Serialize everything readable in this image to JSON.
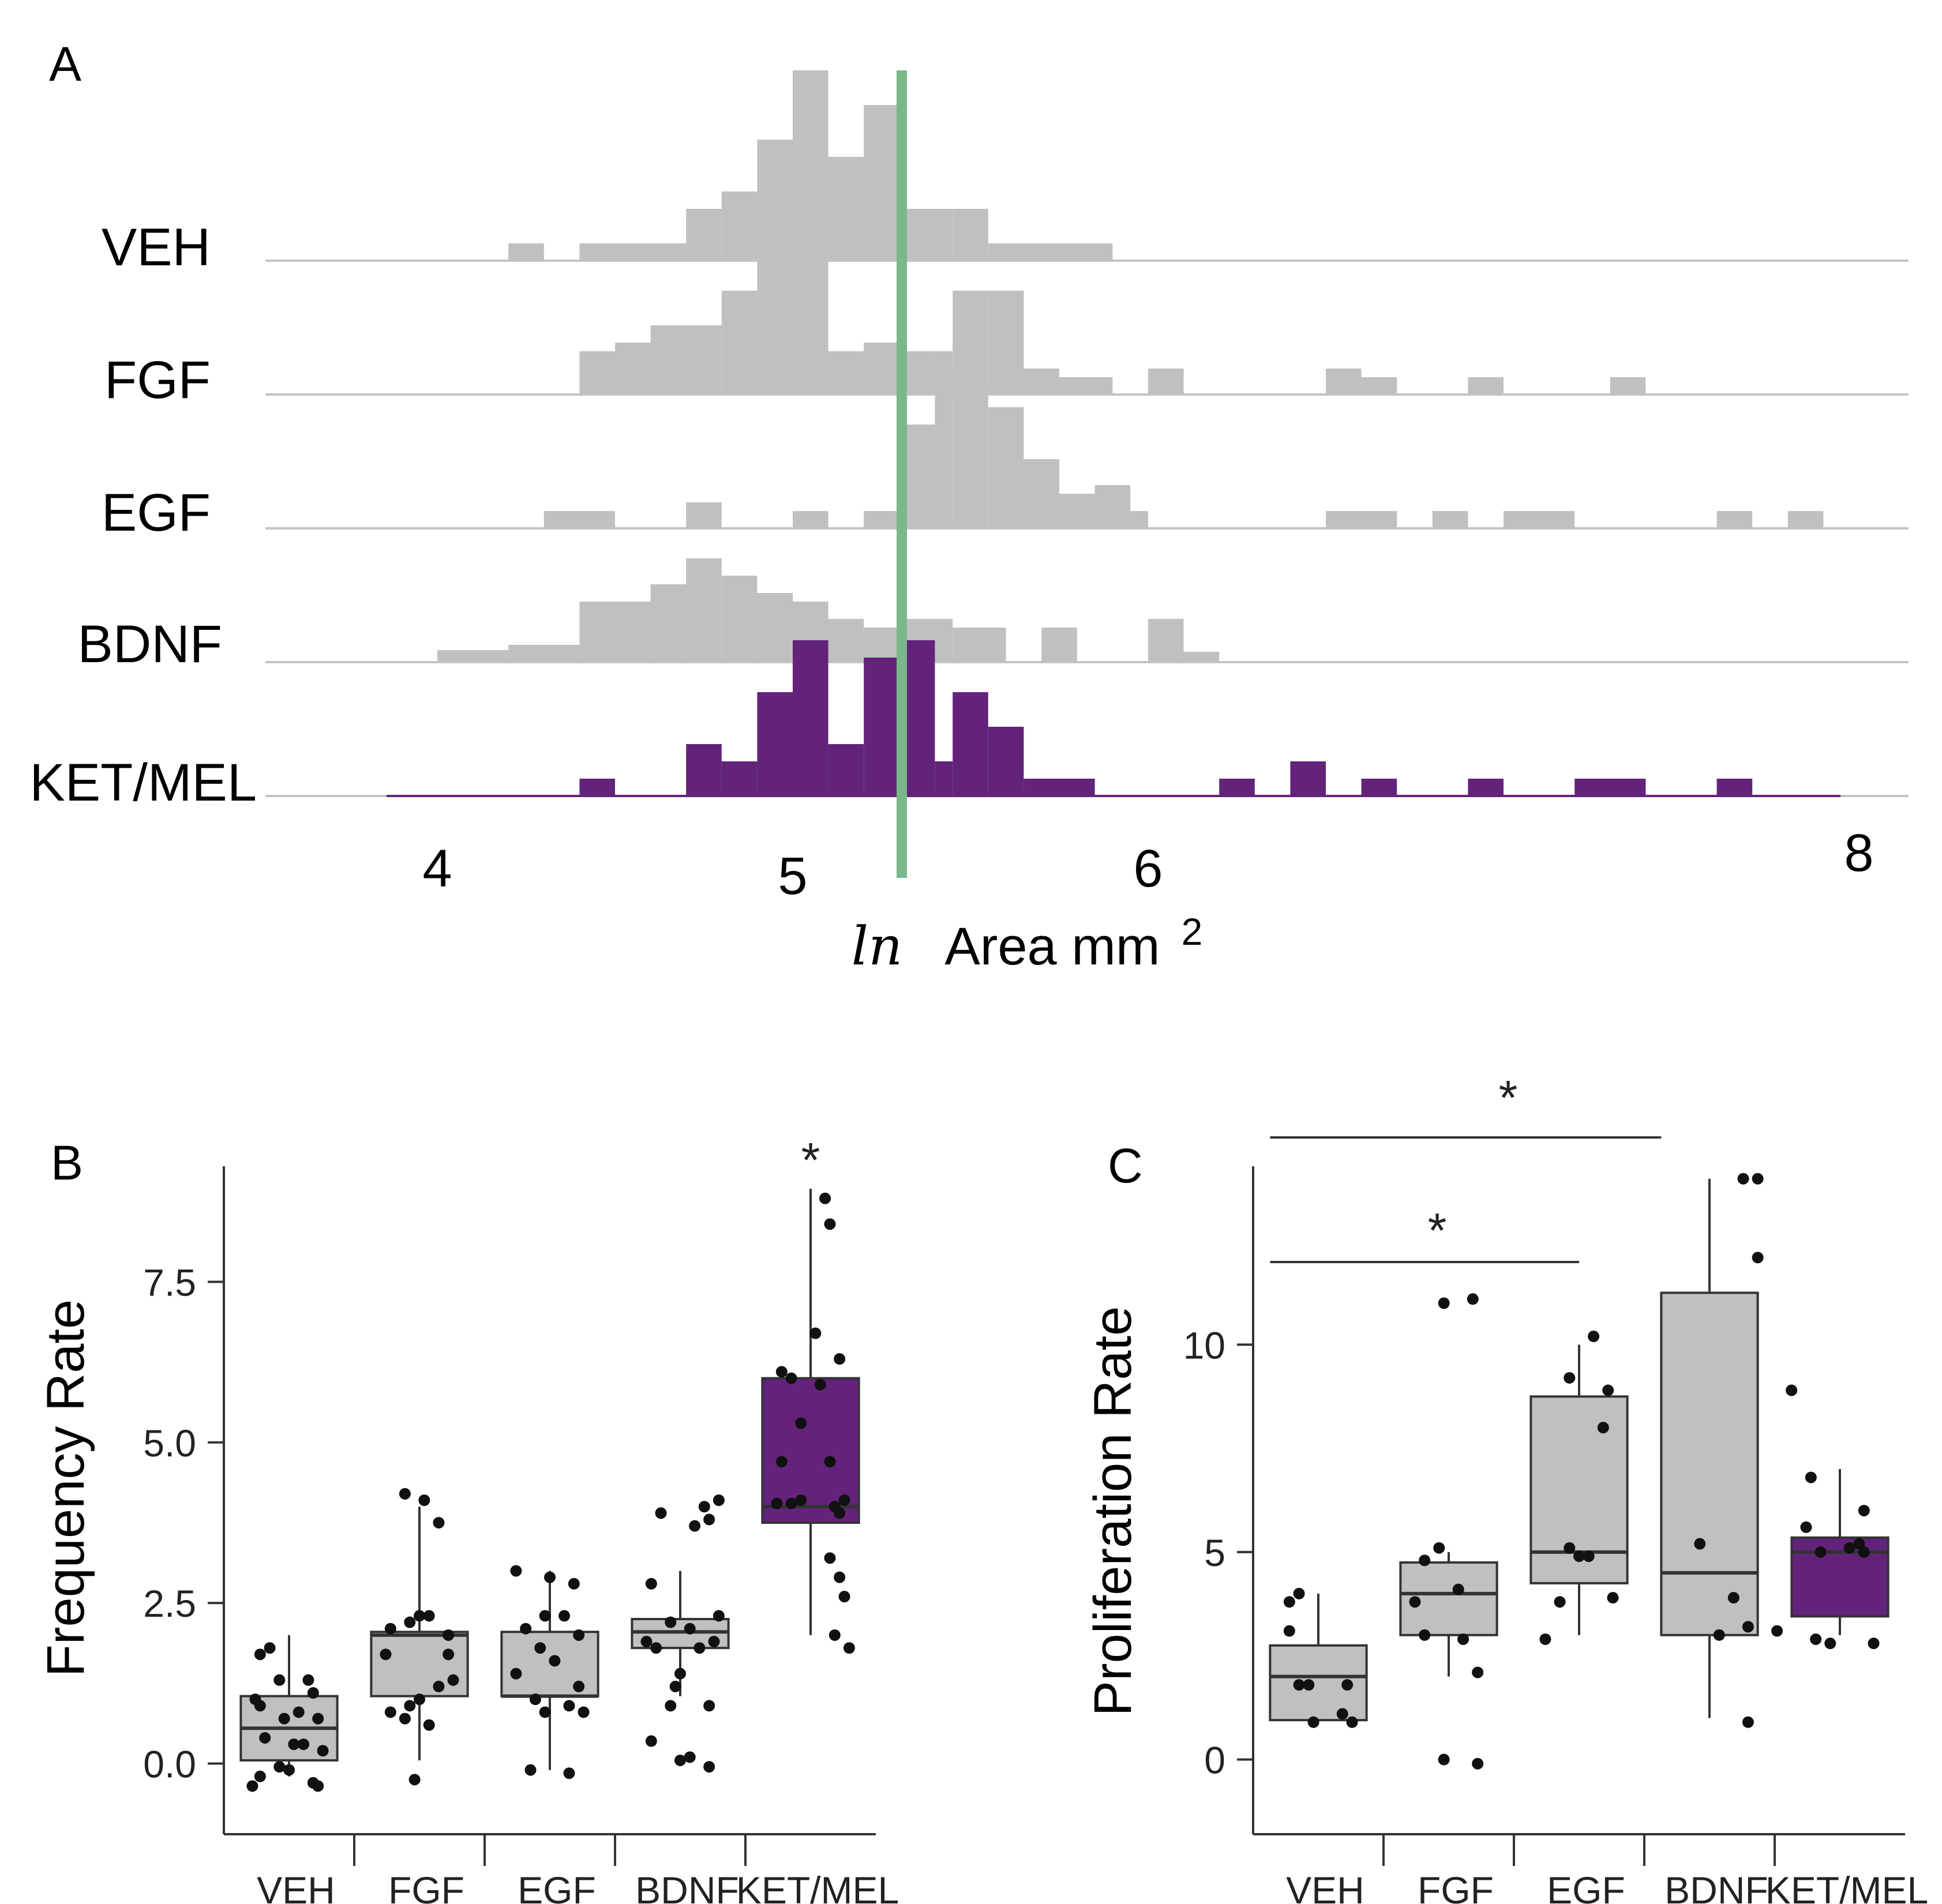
{
  "colors": {
    "gray": "#c0c0c0",
    "purple": "#63237a",
    "green": "#7bb78a",
    "axis": "#333333",
    "baseline": "#c4c4c4",
    "dot": "#111111"
  },
  "chart_data": [
    {
      "panel": "A",
      "type": "bar",
      "subtype": "stacked-histograms",
      "xlabel_prefix": "ln",
      "xlabel": "Area mm",
      "xlabel_sup": "2",
      "x_ticks": [
        "4",
        "5",
        "6",
        "8"
      ],
      "bin_width": 0.1,
      "threshold": 5.3,
      "series": [
        {
          "name": "VEH",
          "bins": [
            [
              4.2,
              4.3,
              1
            ],
            [
              4.4,
              4.7,
              1
            ],
            [
              4.7,
              4.8,
              3
            ],
            [
              4.8,
              4.9,
              4
            ],
            [
              4.9,
              5.0,
              7
            ],
            [
              5.0,
              5.1,
              11
            ],
            [
              5.1,
              5.2,
              6
            ],
            [
              5.2,
              5.3,
              9
            ],
            [
              5.3,
              5.4,
              3
            ],
            [
              5.4,
              5.45,
              3
            ],
            [
              5.45,
              5.55,
              3
            ],
            [
              5.55,
              5.65,
              1
            ],
            [
              5.65,
              5.9,
              1
            ]
          ]
        },
        {
          "name": "FGF",
          "bins": [
            [
              4.4,
              4.5,
              2.5
            ],
            [
              4.5,
              4.6,
              3
            ],
            [
              4.6,
              4.7,
              4
            ],
            [
              4.7,
              4.8,
              4
            ],
            [
              4.8,
              4.9,
              6
            ],
            [
              4.9,
              5.0,
              10
            ],
            [
              5.0,
              5.1,
              10
            ],
            [
              5.1,
              5.2,
              2.5
            ],
            [
              5.2,
              5.3,
              3
            ],
            [
              5.3,
              5.4,
              2.5
            ],
            [
              5.4,
              5.45,
              2.5
            ],
            [
              5.45,
              5.55,
              6
            ],
            [
              5.55,
              5.65,
              6
            ],
            [
              5.65,
              5.75,
              1.5
            ],
            [
              5.75,
              5.9,
              1
            ],
            [
              6.0,
              6.1,
              1.5
            ],
            [
              6.5,
              6.6,
              1.5
            ],
            [
              6.6,
              6.7,
              1
            ],
            [
              6.9,
              7.0,
              1
            ],
            [
              7.3,
              7.4,
              1
            ]
          ]
        },
        {
          "name": "EGF",
          "bins": [
            [
              4.3,
              4.5,
              1
            ],
            [
              4.7,
              4.8,
              1.5
            ],
            [
              5.0,
              5.1,
              1
            ],
            [
              5.2,
              5.3,
              1
            ],
            [
              5.3,
              5.4,
              6
            ],
            [
              5.4,
              5.45,
              9
            ],
            [
              5.45,
              5.55,
              8
            ],
            [
              5.55,
              5.65,
              7
            ],
            [
              5.65,
              5.75,
              4
            ],
            [
              5.75,
              5.85,
              2
            ],
            [
              5.85,
              5.95,
              2.5
            ],
            [
              5.95,
              6.0,
              1
            ],
            [
              6.5,
              6.7,
              1
            ],
            [
              6.8,
              6.9,
              1
            ],
            [
              7.0,
              7.2,
              1
            ],
            [
              7.6,
              7.7,
              1
            ],
            [
              7.8,
              7.9,
              1
            ]
          ]
        },
        {
          "name": "BDNF",
          "bins": [
            [
              4.0,
              4.2,
              0.7
            ],
            [
              4.2,
              4.4,
              1
            ],
            [
              4.4,
              4.6,
              3.5
            ],
            [
              4.6,
              4.7,
              4.5
            ],
            [
              4.7,
              4.8,
              6
            ],
            [
              4.8,
              4.9,
              5
            ],
            [
              4.9,
              5.0,
              4
            ],
            [
              5.0,
              5.1,
              3.5
            ],
            [
              5.1,
              5.2,
              2.5
            ],
            [
              5.2,
              5.3,
              2
            ],
            [
              5.3,
              5.4,
              2.5
            ],
            [
              5.4,
              5.45,
              2.5
            ],
            [
              5.45,
              5.6,
              2
            ],
            [
              5.7,
              5.8,
              2
            ],
            [
              6.0,
              6.1,
              2.5
            ],
            [
              6.1,
              6.2,
              0.6
            ]
          ]
        },
        {
          "name": "KET/MEL",
          "bins": [
            [
              4.4,
              4.5,
              1
            ],
            [
              4.7,
              4.8,
              3
            ],
            [
              4.8,
              4.9,
              2
            ],
            [
              4.9,
              5.0,
              6
            ],
            [
              5.0,
              5.1,
              9
            ],
            [
              5.1,
              5.2,
              3
            ],
            [
              5.2,
              5.3,
              8
            ],
            [
              5.3,
              5.4,
              9
            ],
            [
              5.4,
              5.45,
              2
            ],
            [
              5.45,
              5.55,
              6
            ],
            [
              5.55,
              5.65,
              4
            ],
            [
              5.65,
              5.85,
              1
            ],
            [
              6.2,
              6.3,
              1
            ],
            [
              6.4,
              6.5,
              2
            ],
            [
              6.6,
              6.7,
              1
            ],
            [
              6.9,
              7.0,
              1
            ],
            [
              7.2,
              7.4,
              1
            ],
            [
              7.6,
              7.7,
              1
            ]
          ]
        }
      ]
    },
    {
      "panel": "B",
      "type": "box",
      "ylabel": "Frequency Rate",
      "ylim": [
        -1.1,
        9.3
      ],
      "y_ticks": [
        0.0,
        2.5,
        5.0,
        7.5
      ],
      "y_tick_labels": [
        "0.0",
        "2.5",
        "5.0",
        "7.5"
      ],
      "categories": [
        "VEH",
        "FGF",
        "EGF",
        "BDNF",
        "KET/MEL"
      ],
      "boxes": [
        {
          "q1": 0.05,
          "median": 0.55,
          "q3": 1.05,
          "whisker_low": -0.2,
          "whisker_high": 2.0
        },
        {
          "q1": 1.05,
          "median": 2.0,
          "q3": 2.05,
          "whisker_low": 0.05,
          "whisker_high": 4.0
        },
        {
          "q1": 1.05,
          "median": 1.05,
          "q3": 2.05,
          "whisker_low": -0.1,
          "whisker_high": 3.0
        },
        {
          "q1": 1.8,
          "median": 2.05,
          "q3": 2.25,
          "whisker_low": 1.05,
          "whisker_high": 3.0
        },
        {
          "q1": 3.75,
          "median": 4.0,
          "q3": 6.0,
          "whisker_low": 2.0,
          "whisker_high": 8.95
        }
      ],
      "points": [
        [
          [
            -0.3,
            1.7
          ],
          [
            -0.2,
            1.8
          ],
          [
            -0.1,
            1.3
          ],
          [
            0.2,
            1.3
          ],
          [
            0.25,
            1.1
          ],
          [
            -0.35,
            1.0
          ],
          [
            -0.3,
            0.9
          ],
          [
            0.1,
            0.8
          ],
          [
            -0.05,
            0.7
          ],
          [
            0.3,
            0.7
          ],
          [
            -0.25,
            0.4
          ],
          [
            0.05,
            0.3
          ],
          [
            0.15,
            0.3
          ],
          [
            0.35,
            0.2
          ],
          [
            -0.1,
            -0.05
          ],
          [
            0.0,
            -0.1
          ],
          [
            -0.3,
            -0.2
          ],
          [
            0.25,
            -0.3
          ],
          [
            0.3,
            -0.35
          ],
          [
            -0.38,
            -0.35
          ]
        ],
        [
          [
            -0.15,
            4.2
          ],
          [
            0.05,
            4.1
          ],
          [
            0.2,
            3.75
          ],
          [
            -0.3,
            2.1
          ],
          [
            -0.1,
            2.2
          ],
          [
            0.0,
            2.3
          ],
          [
            0.1,
            2.3
          ],
          [
            0.3,
            2.0
          ],
          [
            -0.35,
            1.7
          ],
          [
            0.3,
            1.7
          ],
          [
            0.35,
            1.3
          ],
          [
            0.2,
            1.2
          ],
          [
            0.0,
            1.0
          ],
          [
            -0.1,
            0.9
          ],
          [
            -0.3,
            0.8
          ],
          [
            -0.15,
            0.7
          ],
          [
            0.1,
            0.6
          ],
          [
            -0.05,
            -0.25
          ]
        ],
        [
          [
            -0.35,
            3.0
          ],
          [
            0.0,
            2.9
          ],
          [
            0.25,
            2.8
          ],
          [
            -0.05,
            2.3
          ],
          [
            0.15,
            2.3
          ],
          [
            -0.25,
            2.1
          ],
          [
            0.3,
            2.0
          ],
          [
            -0.1,
            1.8
          ],
          [
            0.05,
            1.6
          ],
          [
            -0.35,
            1.4
          ],
          [
            0.3,
            1.2
          ],
          [
            -0.15,
            1.0
          ],
          [
            0.2,
            0.9
          ],
          [
            -0.05,
            0.8
          ],
          [
            0.35,
            0.8
          ],
          [
            -0.2,
            -0.1
          ],
          [
            0.2,
            -0.15
          ]
        ],
        [
          [
            -0.2,
            3.9
          ],
          [
            0.25,
            4.0
          ],
          [
            0.4,
            4.1
          ],
          [
            0.3,
            3.8
          ],
          [
            0.15,
            3.7
          ],
          [
            -0.3,
            2.8
          ],
          [
            -0.1,
            2.2
          ],
          [
            0.4,
            2.3
          ],
          [
            0.1,
            2.1
          ],
          [
            -0.35,
            1.9
          ],
          [
            0.35,
            1.9
          ],
          [
            -0.25,
            1.8
          ],
          [
            0.2,
            1.8
          ],
          [
            0.0,
            1.4
          ],
          [
            -0.05,
            1.2
          ],
          [
            -0.1,
            0.9
          ],
          [
            0.3,
            0.9
          ],
          [
            -0.3,
            0.35
          ],
          [
            0.0,
            0.05
          ],
          [
            0.1,
            0.1
          ],
          [
            0.3,
            -0.05
          ]
        ],
        [
          [
            0.15,
            8.8
          ],
          [
            0.2,
            8.4
          ],
          [
            0.05,
            6.7
          ],
          [
            -0.3,
            6.1
          ],
          [
            -0.2,
            6.0
          ],
          [
            0.3,
            6.3
          ],
          [
            0.1,
            5.9
          ],
          [
            -0.1,
            5.3
          ],
          [
            -0.3,
            4.7
          ],
          [
            0.2,
            4.7
          ],
          [
            -0.35,
            4.05
          ],
          [
            -0.2,
            4.05
          ],
          [
            -0.1,
            4.1
          ],
          [
            0.25,
            4.0
          ],
          [
            0.35,
            4.1
          ],
          [
            0.3,
            3.9
          ],
          [
            0.2,
            3.2
          ],
          [
            0.3,
            2.9
          ],
          [
            0.35,
            2.6
          ],
          [
            0.25,
            2.0
          ],
          [
            0.4,
            1.8
          ]
        ]
      ],
      "annotations": [
        "*"
      ]
    },
    {
      "panel": "C",
      "type": "box",
      "ylabel": "Proliferation Rate",
      "ylim": [
        -1.8,
        14.3
      ],
      "y_ticks": [
        0,
        5,
        10
      ],
      "y_tick_labels": [
        "0",
        "5",
        "10"
      ],
      "categories": [
        "VEH",
        "FGF",
        "EGF",
        "BDNF",
        "KET/MEL"
      ],
      "boxes": [
        {
          "q1": 0.95,
          "median": 2.0,
          "q3": 2.75,
          "whisker_low": 0.95,
          "whisker_high": 4.0
        },
        {
          "q1": 3.0,
          "median": 4.0,
          "q3": 4.75,
          "whisker_low": 2.0,
          "whisker_high": 5.0
        },
        {
          "q1": 4.25,
          "median": 5.0,
          "q3": 8.75,
          "whisker_low": 3.0,
          "whisker_high": 10.0
        },
        {
          "q1": 3.0,
          "median": 4.5,
          "q3": 11.25,
          "whisker_low": 1.0,
          "whisker_high": 14.0
        },
        {
          "q1": 3.45,
          "median": 5.0,
          "q3": 5.35,
          "whisker_low": 3.0,
          "whisker_high": 7.0
        }
      ],
      "points": [
        [
          [
            -0.3,
            3.8
          ],
          [
            -0.2,
            4.0
          ],
          [
            -0.3,
            3.1
          ],
          [
            -0.2,
            1.8
          ],
          [
            -0.1,
            1.8
          ],
          [
            0.3,
            1.8
          ],
          [
            -0.05,
            0.9
          ],
          [
            0.25,
            1.1
          ],
          [
            0.35,
            0.9
          ]
        ],
        [
          [
            -0.35,
            3.8
          ],
          [
            -0.25,
            4.8
          ],
          [
            -0.1,
            5.1
          ],
          [
            0.1,
            4.1
          ],
          [
            -0.25,
            3.0
          ],
          [
            0.15,
            2.9
          ],
          [
            0.3,
            2.1
          ],
          [
            -0.05,
            11.0
          ],
          [
            0.25,
            11.1
          ],
          [
            -0.05,
            0.0
          ],
          [
            0.3,
            -0.1
          ]
        ],
        [
          [
            -0.35,
            2.9
          ],
          [
            -0.2,
            3.8
          ],
          [
            -0.1,
            5.1
          ],
          [
            0.0,
            4.9
          ],
          [
            0.1,
            4.9
          ],
          [
            0.15,
            10.2
          ],
          [
            -0.1,
            9.2
          ],
          [
            0.25,
            8.0
          ],
          [
            0.3,
            8.9
          ],
          [
            0.35,
            3.9
          ]
        ],
        [
          [
            0.35,
            14.0
          ],
          [
            0.5,
            14.0
          ],
          [
            0.5,
            12.1
          ],
          [
            0.85,
            8.9
          ],
          [
            -0.1,
            5.2
          ],
          [
            0.25,
            3.9
          ],
          [
            0.4,
            3.2
          ],
          [
            0.7,
            3.1
          ],
          [
            0.1,
            3.0
          ],
          [
            0.4,
            0.9
          ]
        ],
        [
          [
            -0.35,
            5.6
          ],
          [
            -0.2,
            5.0
          ],
          [
            -0.25,
            2.9
          ],
          [
            -0.1,
            2.8
          ],
          [
            0.1,
            5.1
          ],
          [
            0.2,
            5.2
          ],
          [
            0.25,
            5.0
          ],
          [
            0.25,
            6.0
          ],
          [
            -0.3,
            6.8
          ],
          [
            0.35,
            2.8
          ]
        ]
      ],
      "annotations": [
        "*",
        "*"
      ],
      "comparisons": [
        [
          "VEH",
          "EGF"
        ],
        [
          "VEH",
          "BDNF"
        ]
      ]
    }
  ]
}
